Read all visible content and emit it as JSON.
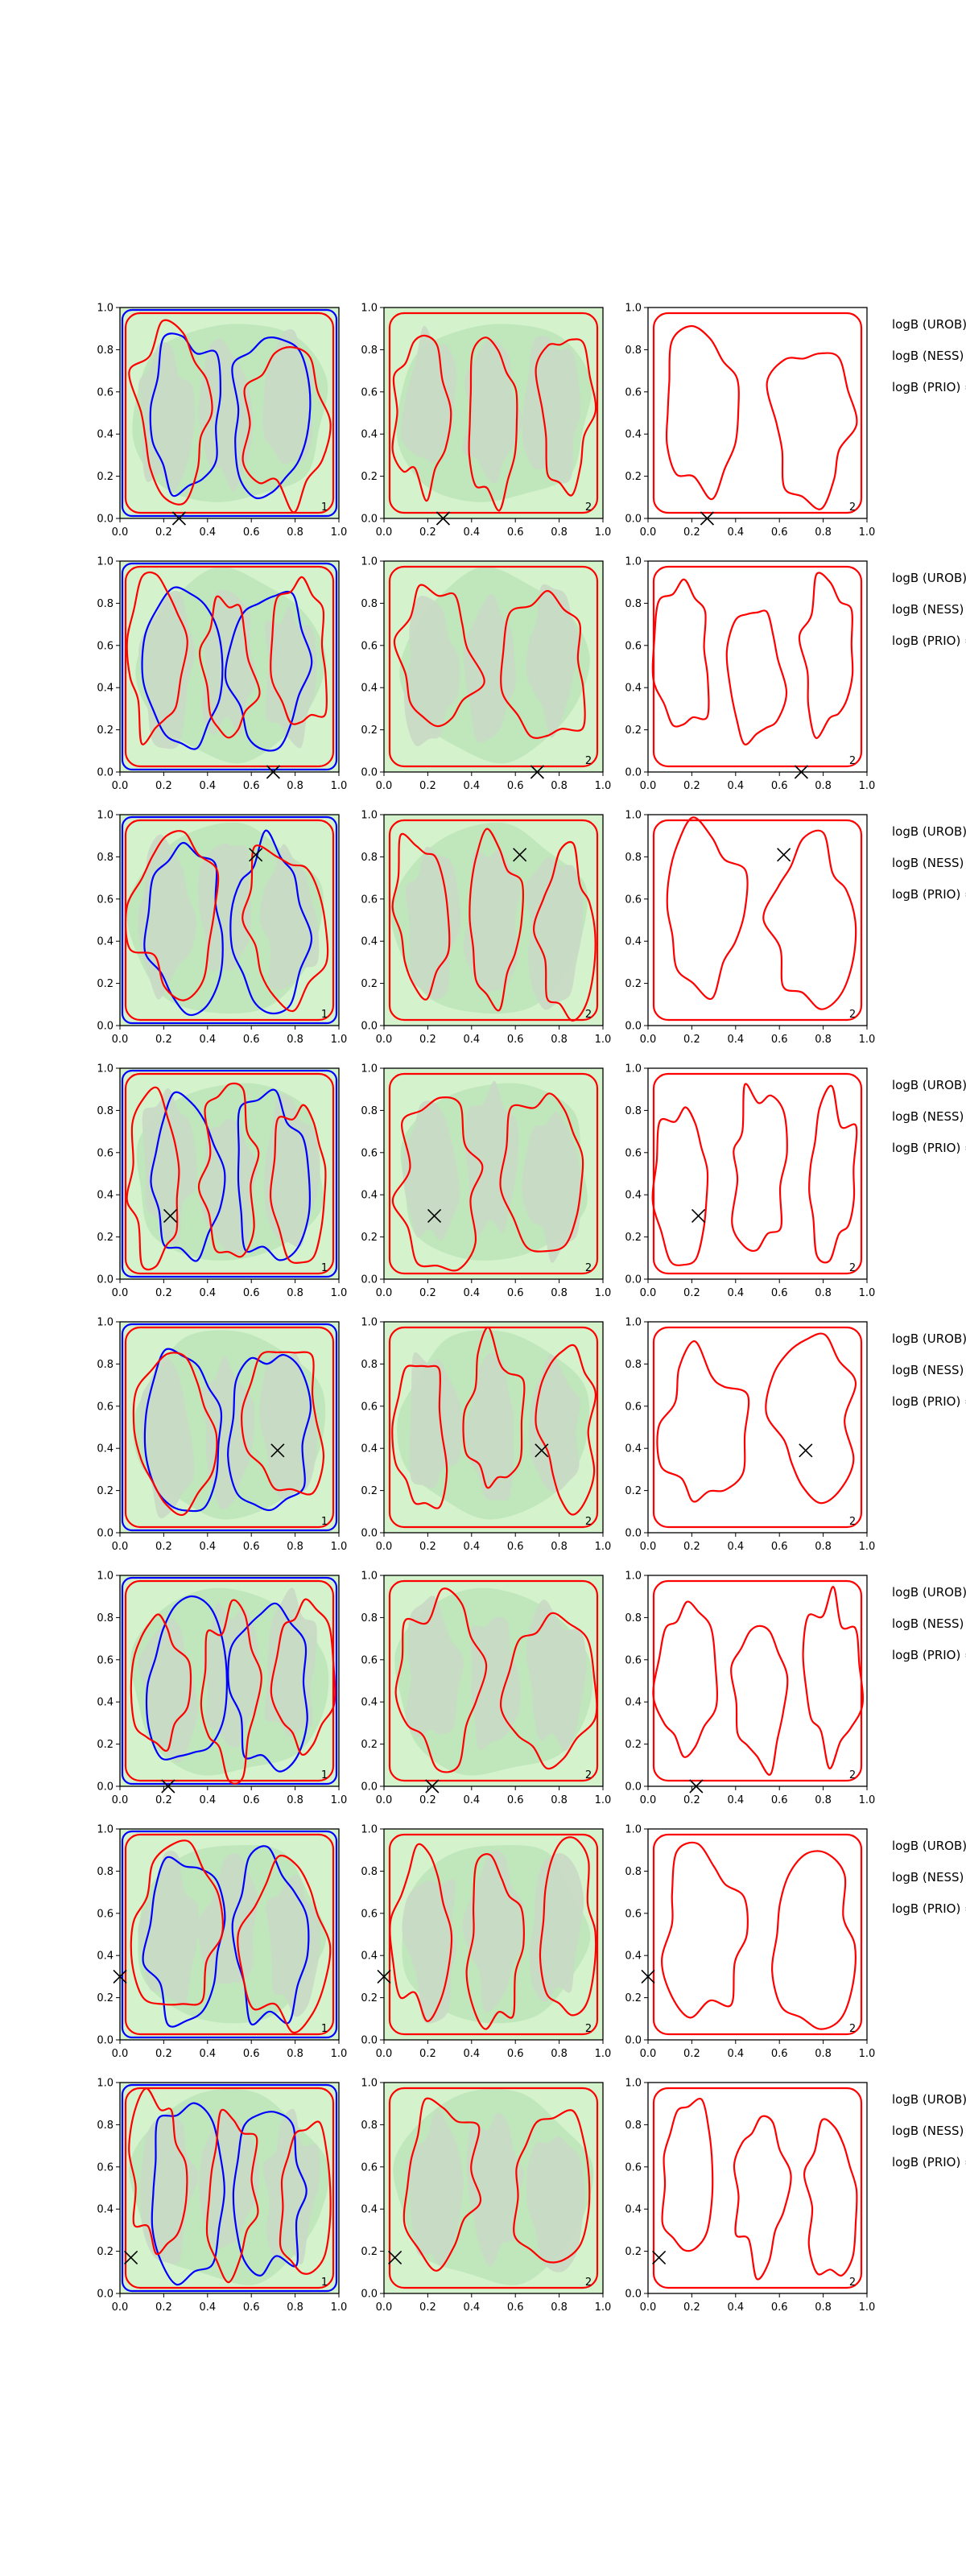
{
  "chart_data": {
    "type": "contour",
    "layout": {
      "rows": 8,
      "cols": 3
    },
    "xlim": [
      0,
      1
    ],
    "ylim": [
      0,
      1
    ],
    "xticks": [
      "0.0",
      "0.2",
      "0.4",
      "0.6",
      "0.8",
      "1.0"
    ],
    "yticks": [
      "0.0",
      "0.2",
      "0.4",
      "0.6",
      "0.8",
      "1.0"
    ],
    "side_labels": [
      "logB (UROB) =",
      "logB (NESS) =",
      "logB (PRIO) ="
    ],
    "colors": {
      "blue": "#0000ff",
      "red": "#ff0000",
      "fill_light": "#d4f2cc",
      "fill_mid": "#bfe7bb",
      "fill_dark": "#c9d9c5",
      "marker": "#000000"
    },
    "rows": [
      {
        "panels": [
          {
            "label": "1",
            "marker": [
              0.27,
              0.0
            ]
          },
          {
            "label": "2",
            "marker": [
              0.27,
              0.0
            ]
          },
          {
            "label": "2",
            "marker": [
              0.27,
              0.0
            ]
          }
        ]
      },
      {
        "panels": [
          {
            "label": "",
            "marker": [
              0.7,
              0.0
            ]
          },
          {
            "label": "2",
            "marker": [
              0.7,
              0.0
            ]
          },
          {
            "label": "2",
            "marker": [
              0.7,
              0.0
            ]
          }
        ]
      },
      {
        "panels": [
          {
            "label": "1",
            "marker": [
              0.62,
              0.81
            ]
          },
          {
            "label": "2",
            "marker": [
              0.62,
              0.81
            ]
          },
          {
            "label": "2",
            "marker": [
              0.62,
              0.81
            ]
          }
        ]
      },
      {
        "panels": [
          {
            "label": "1",
            "marker": [
              0.23,
              0.3
            ]
          },
          {
            "label": "2",
            "marker": [
              0.23,
              0.3
            ]
          },
          {
            "label": "2",
            "marker": [
              0.23,
              0.3
            ]
          }
        ]
      },
      {
        "panels": [
          {
            "label": "1",
            "marker": [
              0.72,
              0.39
            ]
          },
          {
            "label": "2",
            "marker": [
              0.72,
              0.39
            ]
          },
          {
            "label": "2",
            "marker": [
              0.72,
              0.39
            ]
          }
        ]
      },
      {
        "panels": [
          {
            "label": "1",
            "marker": [
              0.22,
              0.0
            ]
          },
          {
            "label": "2",
            "marker": [
              0.22,
              0.0
            ]
          },
          {
            "label": "2",
            "marker": [
              0.22,
              0.0
            ]
          }
        ]
      },
      {
        "panels": [
          {
            "label": "1",
            "marker": [
              0.0,
              0.3
            ]
          },
          {
            "label": "2",
            "marker": [
              0.0,
              0.3
            ]
          },
          {
            "label": "2",
            "marker": [
              0.0,
              0.3
            ]
          }
        ]
      },
      {
        "panels": [
          {
            "label": "1",
            "marker": [
              0.05,
              0.17
            ]
          },
          {
            "label": "2",
            "marker": [
              0.05,
              0.17
            ]
          },
          {
            "label": "2",
            "marker": [
              0.05,
              0.17
            ]
          }
        ]
      }
    ]
  }
}
